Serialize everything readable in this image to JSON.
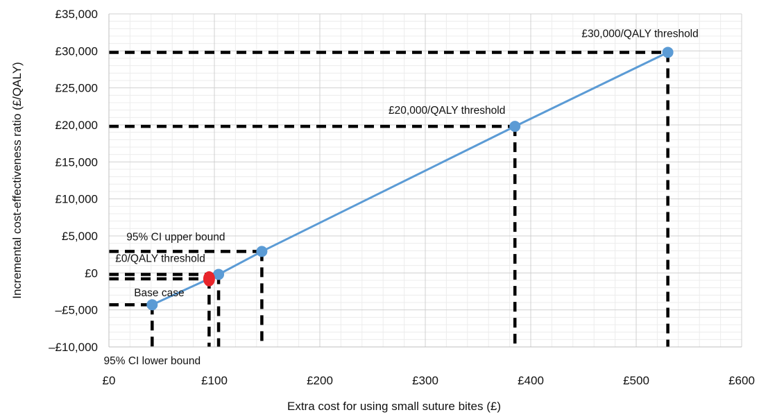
{
  "chart_data": {
    "type": "line",
    "xlabel": "Extra cost for using small suture bites (£)",
    "ylabel": "Incremental cost-effectiveness ratio (£/QALY)",
    "xlim": [
      0,
      600
    ],
    "ylim": [
      -10000,
      35000
    ],
    "x_ticks": [
      {
        "value": 0,
        "label": "£0"
      },
      {
        "value": 100,
        "label": "£100"
      },
      {
        "value": 200,
        "label": "£200"
      },
      {
        "value": 300,
        "label": "£300"
      },
      {
        "value": 400,
        "label": "£400"
      },
      {
        "value": 500,
        "label": "£500"
      },
      {
        "value": 600,
        "label": "£600"
      }
    ],
    "y_ticks": [
      {
        "value": -10000,
        "label": "–£10,000"
      },
      {
        "value": -5000,
        "label": "–£5,000"
      },
      {
        "value": 0,
        "label": "£0"
      },
      {
        "value": 5000,
        "label": "£5,000"
      },
      {
        "value": 10000,
        "label": "£10,000"
      },
      {
        "value": 15000,
        "label": "£15,000"
      },
      {
        "value": 20000,
        "label": "£20,000"
      },
      {
        "value": 25000,
        "label": "£25,000"
      },
      {
        "value": 30000,
        "label": "£30,000"
      },
      {
        "value": 35000,
        "label": "£35,000"
      }
    ],
    "grid": true,
    "series": [
      {
        "color": "#5B9BD5",
        "points": [
          {
            "x": 41,
            "y": -4300
          },
          {
            "x": 104,
            "y": -200
          },
          {
            "x": 145,
            "y": 2900
          },
          {
            "x": 385,
            "y": 19800
          },
          {
            "x": 530,
            "y": 29800
          }
        ]
      }
    ],
    "points": [
      {
        "label": "95% CI lower bound",
        "x": 41,
        "y": -4300,
        "color": "#5B9BD5"
      },
      {
        "label": "£0/QALY threshold",
        "x": 104,
        "y": -200,
        "color": "#5B9BD5"
      },
      {
        "label": "95% CI upper bound",
        "x": 145,
        "y": 2900,
        "color": "#5B9BD5"
      },
      {
        "label": "£20,000/QALY threshold",
        "x": 385,
        "y": 19800,
        "color": "#5B9BD5"
      },
      {
        "label": "£30,000/QALY threshold",
        "x": 530,
        "y": 29800,
        "color": "#5B9BD5"
      },
      {
        "label": "Base case",
        "x": 95,
        "y": -800,
        "color": "#E8252B"
      }
    ]
  }
}
